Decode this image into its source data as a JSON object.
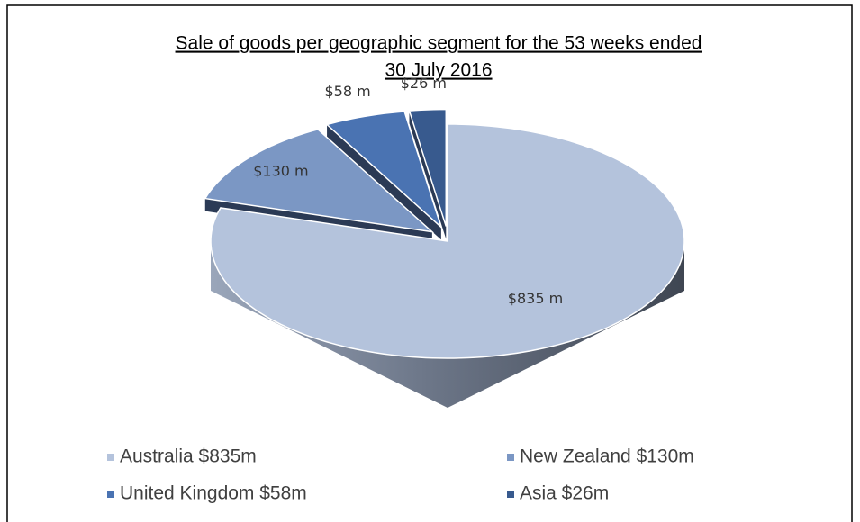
{
  "chart_data": {
    "type": "pie",
    "title": [
      "Sale of goods per geographic segment for the 53 weeks ended",
      "30 July 2016"
    ],
    "categories": [
      "Australia $835m",
      "New Zealand $130m",
      "United Kingdom $58m",
      "Asia $26m"
    ],
    "values": [
      835,
      130,
      58,
      26
    ],
    "value_labels": [
      "$835 m",
      "$130 m",
      "$58 m",
      "$26 m"
    ],
    "colors": [
      "#b4c3dc",
      "#7b97c4",
      "#4a73b2",
      "#385a8e"
    ],
    "legend": "bottom"
  }
}
